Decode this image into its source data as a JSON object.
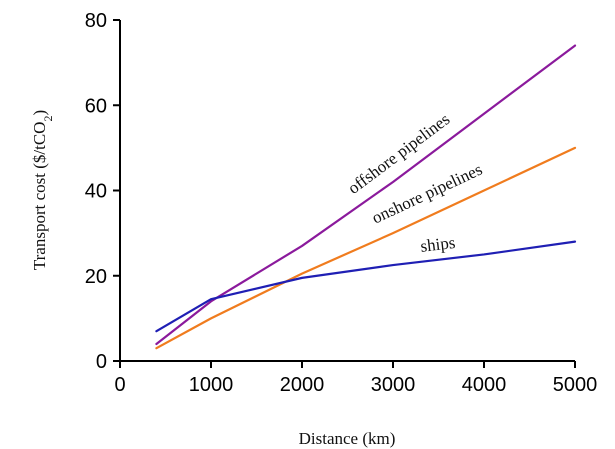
{
  "chart_data": {
    "type": "line",
    "title": "",
    "xlabel": "Distance (km)",
    "ylabel_main": "Transport cost ($/tCO",
    "ylabel_sub": "2",
    "ylabel_end": ")",
    "xlim": [
      0,
      5000
    ],
    "ylim": [
      0,
      80
    ],
    "xticks": [
      0,
      1000,
      2000,
      3000,
      4000,
      5000
    ],
    "yticks": [
      0,
      20,
      40,
      60,
      80
    ],
    "xtick_labels": [
      "0",
      "1000",
      "2000",
      "3000",
      "4000",
      "5000"
    ],
    "ytick_labels": [
      "0",
      "20",
      "40",
      "60",
      "80"
    ],
    "grid": false,
    "legend": "inline labels on lines",
    "series": [
      {
        "name": "offshore pipelines",
        "color": "#8b1a9c",
        "x": [
          400,
          1000,
          2000,
          3000,
          4000,
          5000
        ],
        "y": [
          4,
          14,
          27,
          42,
          58,
          74
        ]
      },
      {
        "name": "onshore pipelines",
        "color": "#f07c1e",
        "x": [
          400,
          1000,
          2000,
          3000,
          4000,
          5000
        ],
        "y": [
          3,
          10,
          20.5,
          30,
          40,
          50
        ]
      },
      {
        "name": "ships",
        "color": "#1f1fb4",
        "x": [
          400,
          1000,
          2000,
          3000,
          4000,
          5000
        ],
        "y": [
          7,
          14.5,
          19.5,
          22.5,
          25,
          28
        ]
      }
    ]
  }
}
